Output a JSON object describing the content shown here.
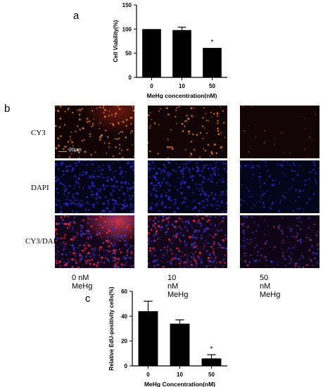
{
  "figure": {
    "panel_a_letter": "a",
    "panel_b_letter": "b",
    "panel_c_letter": "c",
    "row_labels": [
      "CY3",
      "DAPI",
      "CY3/DAPI"
    ],
    "condition_labels": [
      "0 nM MeHg",
      "10 nM MeHg",
      "50 nM MeHg"
    ],
    "scale_bar_label": "20μm"
  },
  "colors": {
    "bar": "#000000",
    "cy3": "#e0782a",
    "dapi": "#2b2bd6",
    "merge_red": "#e8203a",
    "merge_blue": "#3a34c8"
  },
  "chart_data": [
    {
      "type": "bar",
      "panel": "a",
      "categories": [
        "0",
        "10",
        "50"
      ],
      "values": [
        100,
        98,
        61
      ],
      "errors": [
        0,
        6,
        0
      ],
      "ylabel": "Cell Viability(%)",
      "xlabel": "MeHg concentration(nM)",
      "ylim": [
        0,
        150
      ],
      "yticks": [
        0,
        50,
        100,
        150
      ],
      "annotations": [
        {
          "category": "50",
          "text": "*"
        }
      ]
    },
    {
      "type": "bar",
      "panel": "c",
      "categories": [
        "0",
        "10",
        "50"
      ],
      "values": [
        44,
        34,
        6
      ],
      "errors": [
        8,
        3,
        3
      ],
      "ylabel": "Relative EdU-positivity cells(%)",
      "xlabel": "MeHg Concentration(nM)",
      "ylim": [
        0,
        60
      ],
      "yticks": [
        0,
        20,
        40,
        60
      ],
      "annotations": [
        {
          "category": "50",
          "text": "*"
        }
      ]
    }
  ]
}
